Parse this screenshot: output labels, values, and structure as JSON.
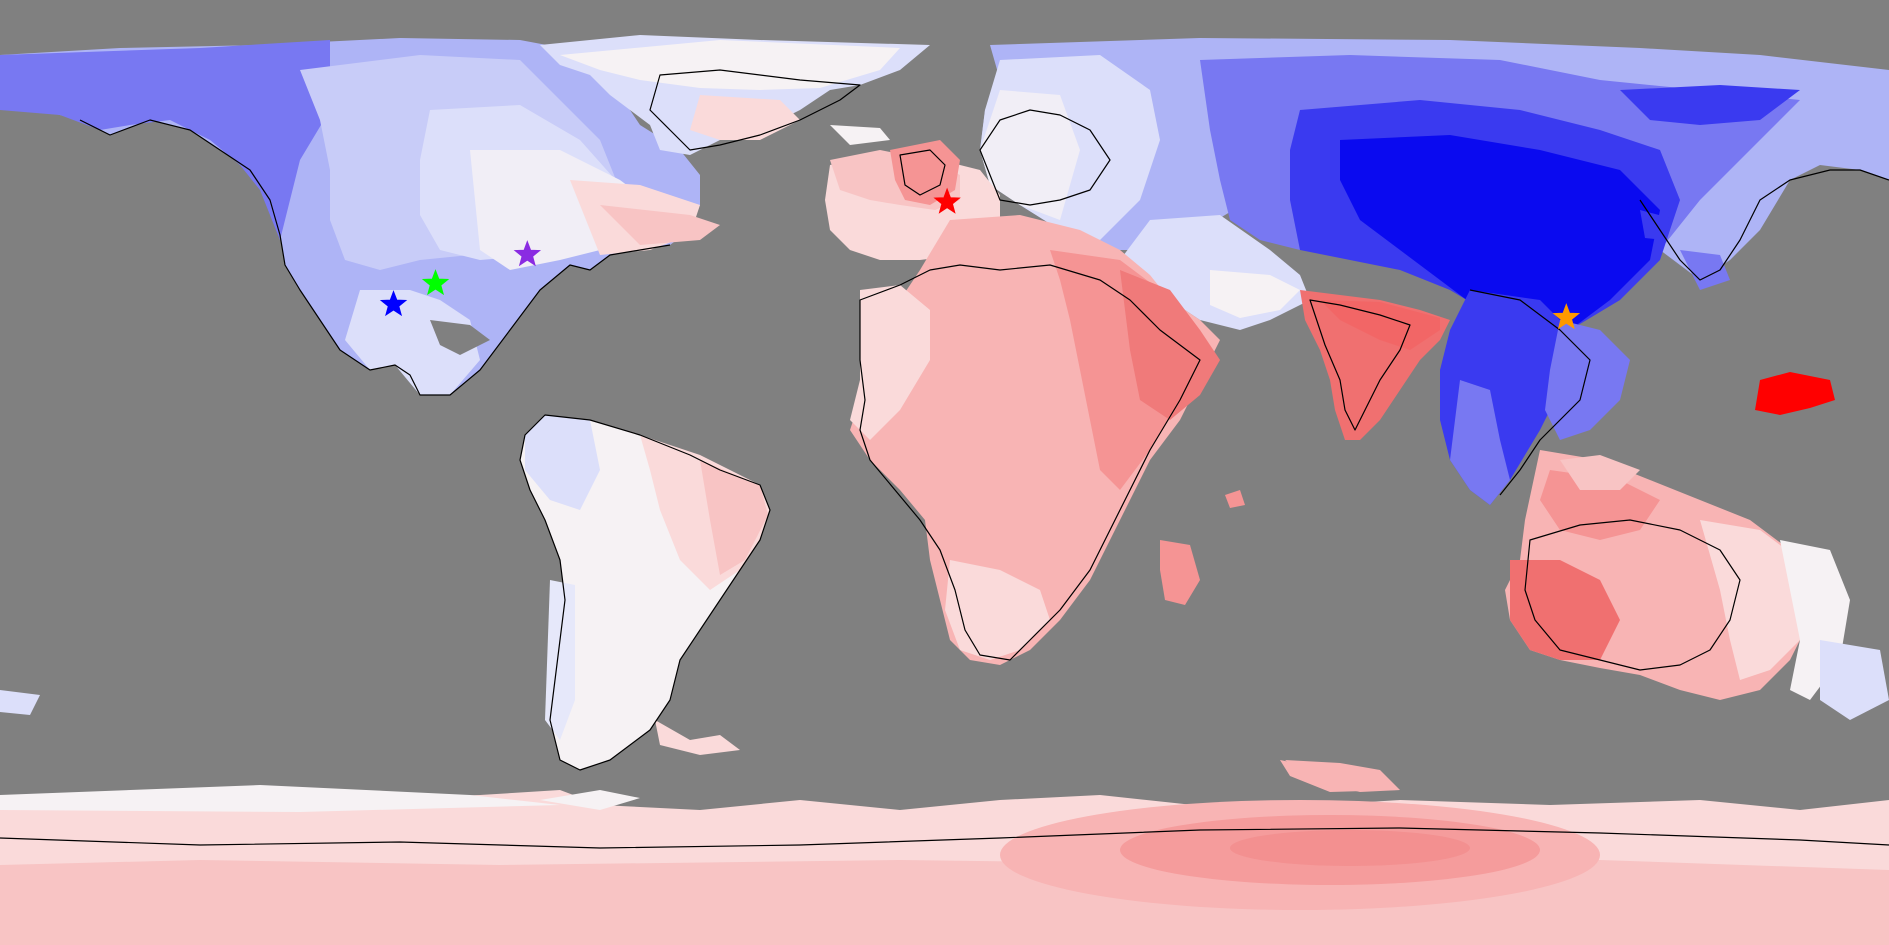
{
  "map": {
    "projection": "equirectangular",
    "background_color": "#808080",
    "palette": {
      "deep_blue": "#0000ee",
      "blue": "#3a3af0",
      "mid_blue": "#7878f2",
      "light_blue": "#aeb4f6",
      "pale_blue": "#dcdffa",
      "near_white": "#f6f2f4",
      "pale_red": "#fadada",
      "light_red": "#f8b4b4",
      "mid_red": "#f59494",
      "red": "#f06e6e",
      "strong_red": "#ff0000"
    },
    "markers": [
      {
        "name": "marker-star-blue",
        "color": "#0000ff",
        "lon": -105.0,
        "lat": 32.0
      },
      {
        "name": "marker-star-green",
        "color": "#00ff00",
        "lon": -97.0,
        "lat": 36.0
      },
      {
        "name": "marker-star-purple",
        "color": "#8a2be2",
        "lon": -79.5,
        "lat": 41.5
      },
      {
        "name": "marker-star-red",
        "color": "#ff0000",
        "lon": 0.5,
        "lat": 51.5
      },
      {
        "name": "marker-star-orange",
        "color": "#ff9900",
        "lon": 118.5,
        "lat": 29.5
      }
    ]
  }
}
